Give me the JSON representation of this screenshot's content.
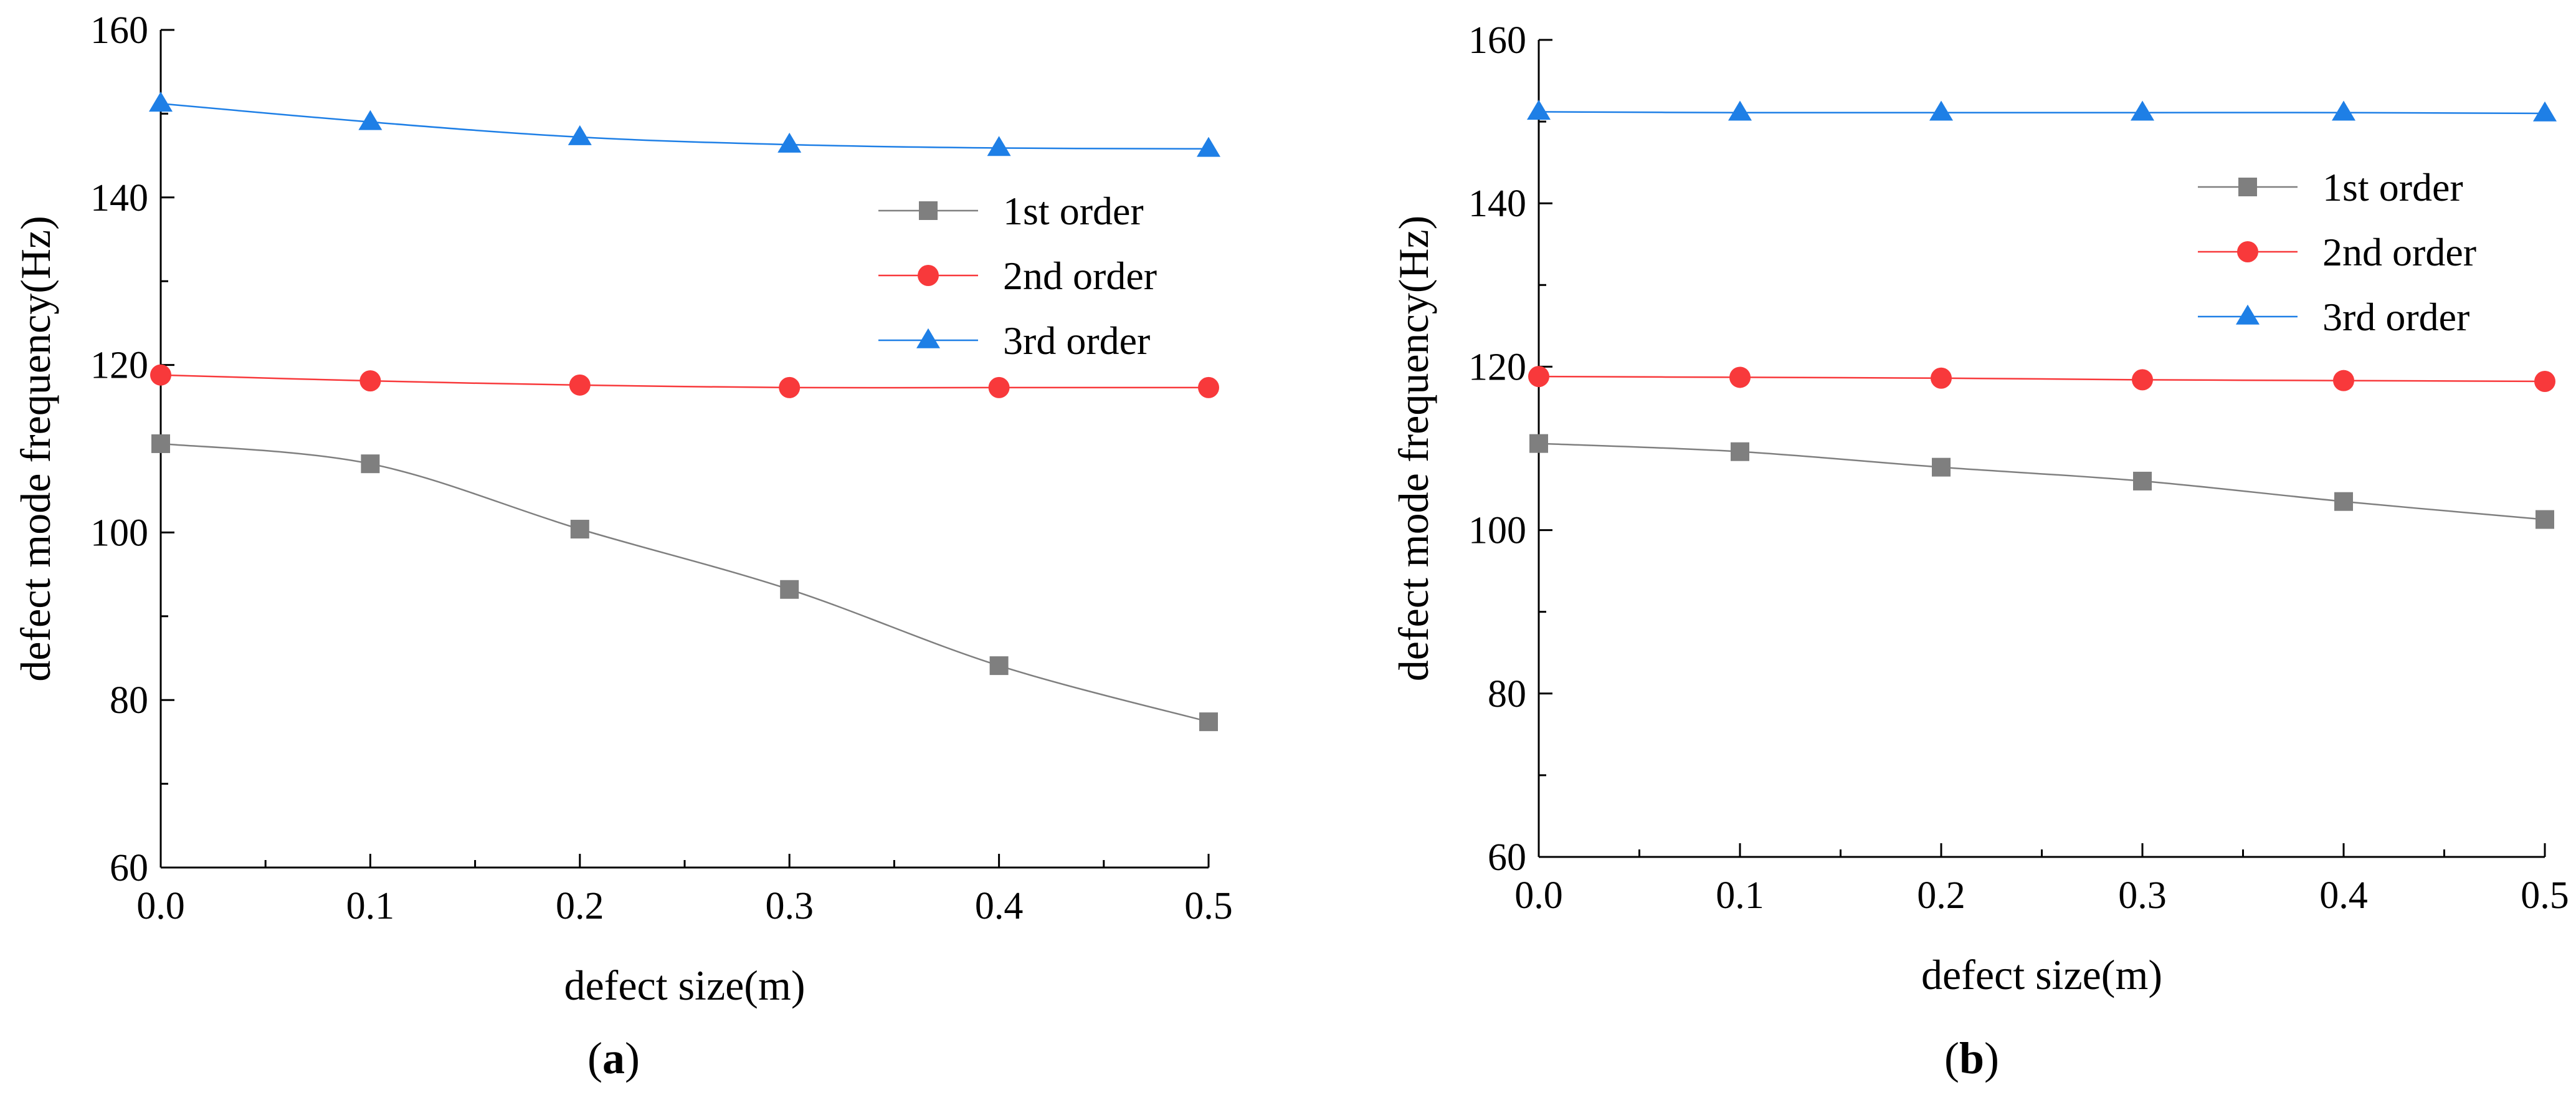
{
  "chart_data": [
    {
      "type": "line",
      "panel_label": "a",
      "caption_open": "(",
      "caption_close": ")",
      "xlabel": "defect size(m)",
      "ylabel": "defect mode frequency(Hz)",
      "xlim": [
        0.0,
        0.5
      ],
      "ylim": [
        60,
        160
      ],
      "x_ticks": [
        0.0,
        0.1,
        0.2,
        0.3,
        0.4,
        0.5
      ],
      "x_tick_labels": [
        "0.0",
        "0.1",
        "0.2",
        "0.3",
        "0.4",
        "0.5"
      ],
      "y_ticks": [
        60,
        80,
        100,
        120,
        140,
        160
      ],
      "y_tick_labels": [
        "60",
        "80",
        "100",
        "120",
        "140",
        "160"
      ],
      "grid": false,
      "legend_position": "top-right",
      "x": [
        0.0,
        0.1,
        0.2,
        0.3,
        0.4,
        0.5
      ],
      "series": [
        {
          "name": "1st order",
          "marker": "square",
          "color": "#7f7f7f",
          "values": [
            110.6,
            108.2,
            100.4,
            93.2,
            84.1,
            77.4
          ]
        },
        {
          "name": "2nd order",
          "marker": "circle",
          "color": "#f8393b",
          "values": [
            118.8,
            118.1,
            117.6,
            117.3,
            117.3,
            117.3
          ]
        },
        {
          "name": "3rd order",
          "marker": "triangle",
          "color": "#1e7fe6",
          "values": [
            151.2,
            149.0,
            147.2,
            146.3,
            145.9,
            145.8
          ]
        }
      ]
    },
    {
      "type": "line",
      "panel_label": "b",
      "caption_open": "(",
      "caption_close": ")",
      "xlabel": "defect size(m)",
      "ylabel": "defect mode frequency(Hz)",
      "xlim": [
        0.0,
        0.5
      ],
      "ylim": [
        60,
        160
      ],
      "x_ticks": [
        0.0,
        0.1,
        0.2,
        0.3,
        0.4,
        0.5
      ],
      "x_tick_labels": [
        "0.0",
        "0.1",
        "0.2",
        "0.3",
        "0.4",
        "0.5"
      ],
      "y_ticks": [
        60,
        80,
        100,
        120,
        140,
        160
      ],
      "y_tick_labels": [
        "60",
        "80",
        "100",
        "120",
        "140",
        "160"
      ],
      "grid": false,
      "legend_position": "top-right",
      "x": [
        0.0,
        0.1,
        0.2,
        0.3,
        0.4,
        0.5
      ],
      "series": [
        {
          "name": "1st order",
          "marker": "square",
          "color": "#7f7f7f",
          "values": [
            110.6,
            109.6,
            107.7,
            106.0,
            103.5,
            101.3
          ]
        },
        {
          "name": "2nd order",
          "marker": "circle",
          "color": "#f8393b",
          "values": [
            118.8,
            118.7,
            118.6,
            118.4,
            118.3,
            118.2
          ]
        },
        {
          "name": "3rd order",
          "marker": "triangle",
          "color": "#1e7fe6",
          "values": [
            151.2,
            151.1,
            151.1,
            151.1,
            151.1,
            151.0
          ]
        }
      ]
    }
  ]
}
